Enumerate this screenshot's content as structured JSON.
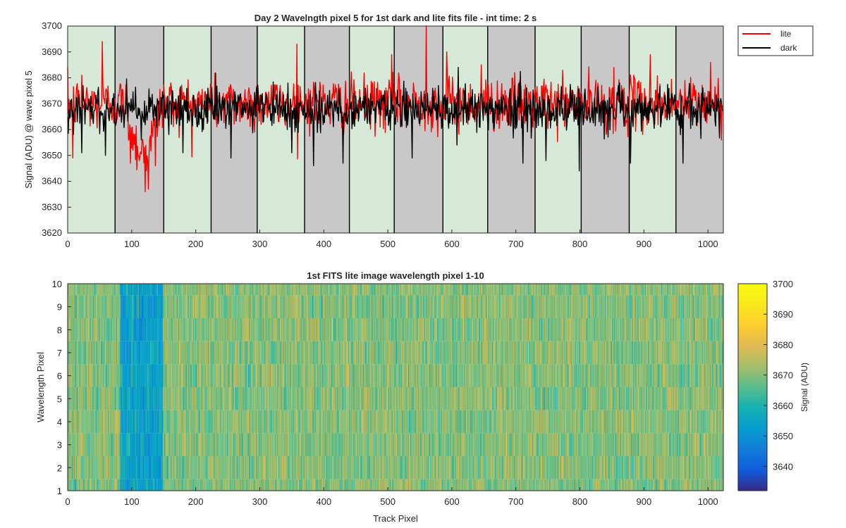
{
  "chart_data": [
    {
      "type": "line",
      "title": "Day 2 Wavelngth pixel 5 for 1st dark and lite fits file - int time: 2 s",
      "xlabel": "",
      "ylabel": "Signal (ADU) @ wave pixel 5",
      "xlim": [
        0,
        1024
      ],
      "ylim": [
        3620,
        3700
      ],
      "xticks": [
        0,
        100,
        200,
        300,
        400,
        500,
        600,
        700,
        800,
        900,
        1000
      ],
      "yticks": [
        3620,
        3630,
        3640,
        3650,
        3660,
        3670,
        3680,
        3690,
        3700
      ],
      "grid": false,
      "legend_position": "outside-top-right",
      "band_boundaries": [
        0,
        74,
        150,
        224,
        296,
        370,
        440,
        510,
        586,
        656,
        730,
        802,
        877,
        950,
        1024
      ],
      "band_colors": [
        "#d6e8d8",
        "#c8c8c8"
      ],
      "series": [
        {
          "name": "lite",
          "color": "#ff0000",
          "n_points": 1024,
          "baseline": 3670,
          "noise_amplitude": 6,
          "notable_points": [
            [
              8,
              3649
            ],
            [
              22,
              3681
            ],
            [
              54,
              3694
            ],
            [
              98,
              3647
            ],
            [
              112,
              3648
            ],
            [
              121,
              3636
            ],
            [
              126,
              3637
            ],
            [
              137,
              3646
            ],
            [
              358,
              3693
            ],
            [
              506,
              3689
            ],
            [
              560,
              3700
            ],
            [
              592,
              3690
            ],
            [
              646,
              3685
            ],
            [
              853,
              3684
            ],
            [
              910,
              3689
            ],
            [
              1004,
              3686
            ]
          ],
          "dip_region": {
            "x_range": [
              90,
              145
            ],
            "level": 3652
          }
        },
        {
          "name": "dark",
          "color": "#000000",
          "n_points": 1024,
          "baseline": 3668,
          "noise_amplitude": 5,
          "notable_points": [
            [
              22,
              3651
            ],
            [
              59,
              3650
            ],
            [
              180,
              3651
            ],
            [
              255,
              3649
            ],
            [
              350,
              3651
            ],
            [
              384,
              3646
            ],
            [
              430,
              3647
            ],
            [
              538,
              3649
            ],
            [
              608,
              3654
            ],
            [
              711,
              3647
            ],
            [
              747,
              3648
            ],
            [
              799,
              3644
            ],
            [
              879,
              3647
            ],
            [
              961,
              3647
            ]
          ]
        }
      ]
    },
    {
      "type": "heatmap",
      "title": "1st FITS lite image wavelength pixel 1-10",
      "xlabel": "Track Pixel",
      "ylabel": "Wavelength Pixel",
      "xlim": [
        0,
        1024
      ],
      "ylim": [
        1,
        10
      ],
      "xticks": [
        0,
        100,
        200,
        300,
        400,
        500,
        600,
        700,
        800,
        900,
        1000
      ],
      "yticks": [
        1,
        2,
        3,
        4,
        5,
        6,
        7,
        8,
        9,
        10
      ],
      "rows": 10,
      "columns": 1024,
      "baseline": 3670,
      "noise_amplitude": 6,
      "low_region": {
        "x_range": [
          82,
          148
        ],
        "level": 3654
      },
      "colorbar": {
        "label": "Signal (ADU)",
        "range": [
          3632,
          3700
        ],
        "ticks": [
          3640,
          3650,
          3660,
          3670,
          3680,
          3690,
          3700
        ],
        "colormap": "parula"
      }
    }
  ]
}
